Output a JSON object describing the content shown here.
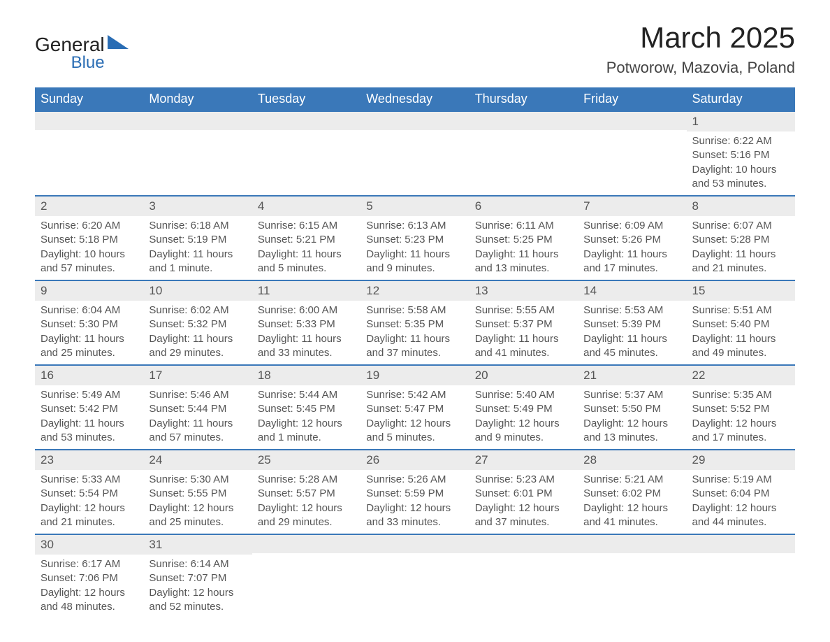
{
  "logo": {
    "main": "General",
    "sub": "Blue"
  },
  "title": "March 2025",
  "location": "Potworow, Mazovia, Poland",
  "colors": {
    "header_bg": "#3a78b9",
    "header_text": "#ffffff",
    "daynum_bg": "#ececec",
    "border": "#3a78b9",
    "text": "#555555",
    "logo_blue": "#2a6db4"
  },
  "weekdays": [
    "Sunday",
    "Monday",
    "Tuesday",
    "Wednesday",
    "Thursday",
    "Friday",
    "Saturday"
  ],
  "weeks": [
    [
      {
        "day": "",
        "sunrise": "",
        "sunset": "",
        "daylight": ""
      },
      {
        "day": "",
        "sunrise": "",
        "sunset": "",
        "daylight": ""
      },
      {
        "day": "",
        "sunrise": "",
        "sunset": "",
        "daylight": ""
      },
      {
        "day": "",
        "sunrise": "",
        "sunset": "",
        "daylight": ""
      },
      {
        "day": "",
        "sunrise": "",
        "sunset": "",
        "daylight": ""
      },
      {
        "day": "",
        "sunrise": "",
        "sunset": "",
        "daylight": ""
      },
      {
        "day": "1",
        "sunrise": "Sunrise: 6:22 AM",
        "sunset": "Sunset: 5:16 PM",
        "daylight": "Daylight: 10 hours and 53 minutes."
      }
    ],
    [
      {
        "day": "2",
        "sunrise": "Sunrise: 6:20 AM",
        "sunset": "Sunset: 5:18 PM",
        "daylight": "Daylight: 10 hours and 57 minutes."
      },
      {
        "day": "3",
        "sunrise": "Sunrise: 6:18 AM",
        "sunset": "Sunset: 5:19 PM",
        "daylight": "Daylight: 11 hours and 1 minute."
      },
      {
        "day": "4",
        "sunrise": "Sunrise: 6:15 AM",
        "sunset": "Sunset: 5:21 PM",
        "daylight": "Daylight: 11 hours and 5 minutes."
      },
      {
        "day": "5",
        "sunrise": "Sunrise: 6:13 AM",
        "sunset": "Sunset: 5:23 PM",
        "daylight": "Daylight: 11 hours and 9 minutes."
      },
      {
        "day": "6",
        "sunrise": "Sunrise: 6:11 AM",
        "sunset": "Sunset: 5:25 PM",
        "daylight": "Daylight: 11 hours and 13 minutes."
      },
      {
        "day": "7",
        "sunrise": "Sunrise: 6:09 AM",
        "sunset": "Sunset: 5:26 PM",
        "daylight": "Daylight: 11 hours and 17 minutes."
      },
      {
        "day": "8",
        "sunrise": "Sunrise: 6:07 AM",
        "sunset": "Sunset: 5:28 PM",
        "daylight": "Daylight: 11 hours and 21 minutes."
      }
    ],
    [
      {
        "day": "9",
        "sunrise": "Sunrise: 6:04 AM",
        "sunset": "Sunset: 5:30 PM",
        "daylight": "Daylight: 11 hours and 25 minutes."
      },
      {
        "day": "10",
        "sunrise": "Sunrise: 6:02 AM",
        "sunset": "Sunset: 5:32 PM",
        "daylight": "Daylight: 11 hours and 29 minutes."
      },
      {
        "day": "11",
        "sunrise": "Sunrise: 6:00 AM",
        "sunset": "Sunset: 5:33 PM",
        "daylight": "Daylight: 11 hours and 33 minutes."
      },
      {
        "day": "12",
        "sunrise": "Sunrise: 5:58 AM",
        "sunset": "Sunset: 5:35 PM",
        "daylight": "Daylight: 11 hours and 37 minutes."
      },
      {
        "day": "13",
        "sunrise": "Sunrise: 5:55 AM",
        "sunset": "Sunset: 5:37 PM",
        "daylight": "Daylight: 11 hours and 41 minutes."
      },
      {
        "day": "14",
        "sunrise": "Sunrise: 5:53 AM",
        "sunset": "Sunset: 5:39 PM",
        "daylight": "Daylight: 11 hours and 45 minutes."
      },
      {
        "day": "15",
        "sunrise": "Sunrise: 5:51 AM",
        "sunset": "Sunset: 5:40 PM",
        "daylight": "Daylight: 11 hours and 49 minutes."
      }
    ],
    [
      {
        "day": "16",
        "sunrise": "Sunrise: 5:49 AM",
        "sunset": "Sunset: 5:42 PM",
        "daylight": "Daylight: 11 hours and 53 minutes."
      },
      {
        "day": "17",
        "sunrise": "Sunrise: 5:46 AM",
        "sunset": "Sunset: 5:44 PM",
        "daylight": "Daylight: 11 hours and 57 minutes."
      },
      {
        "day": "18",
        "sunrise": "Sunrise: 5:44 AM",
        "sunset": "Sunset: 5:45 PM",
        "daylight": "Daylight: 12 hours and 1 minute."
      },
      {
        "day": "19",
        "sunrise": "Sunrise: 5:42 AM",
        "sunset": "Sunset: 5:47 PM",
        "daylight": "Daylight: 12 hours and 5 minutes."
      },
      {
        "day": "20",
        "sunrise": "Sunrise: 5:40 AM",
        "sunset": "Sunset: 5:49 PM",
        "daylight": "Daylight: 12 hours and 9 minutes."
      },
      {
        "day": "21",
        "sunrise": "Sunrise: 5:37 AM",
        "sunset": "Sunset: 5:50 PM",
        "daylight": "Daylight: 12 hours and 13 minutes."
      },
      {
        "day": "22",
        "sunrise": "Sunrise: 5:35 AM",
        "sunset": "Sunset: 5:52 PM",
        "daylight": "Daylight: 12 hours and 17 minutes."
      }
    ],
    [
      {
        "day": "23",
        "sunrise": "Sunrise: 5:33 AM",
        "sunset": "Sunset: 5:54 PM",
        "daylight": "Daylight: 12 hours and 21 minutes."
      },
      {
        "day": "24",
        "sunrise": "Sunrise: 5:30 AM",
        "sunset": "Sunset: 5:55 PM",
        "daylight": "Daylight: 12 hours and 25 minutes."
      },
      {
        "day": "25",
        "sunrise": "Sunrise: 5:28 AM",
        "sunset": "Sunset: 5:57 PM",
        "daylight": "Daylight: 12 hours and 29 minutes."
      },
      {
        "day": "26",
        "sunrise": "Sunrise: 5:26 AM",
        "sunset": "Sunset: 5:59 PM",
        "daylight": "Daylight: 12 hours and 33 minutes."
      },
      {
        "day": "27",
        "sunrise": "Sunrise: 5:23 AM",
        "sunset": "Sunset: 6:01 PM",
        "daylight": "Daylight: 12 hours and 37 minutes."
      },
      {
        "day": "28",
        "sunrise": "Sunrise: 5:21 AM",
        "sunset": "Sunset: 6:02 PM",
        "daylight": "Daylight: 12 hours and 41 minutes."
      },
      {
        "day": "29",
        "sunrise": "Sunrise: 5:19 AM",
        "sunset": "Sunset: 6:04 PM",
        "daylight": "Daylight: 12 hours and 44 minutes."
      }
    ],
    [
      {
        "day": "30",
        "sunrise": "Sunrise: 6:17 AM",
        "sunset": "Sunset: 7:06 PM",
        "daylight": "Daylight: 12 hours and 48 minutes."
      },
      {
        "day": "31",
        "sunrise": "Sunrise: 6:14 AM",
        "sunset": "Sunset: 7:07 PM",
        "daylight": "Daylight: 12 hours and 52 minutes."
      },
      {
        "day": "",
        "sunrise": "",
        "sunset": "",
        "daylight": ""
      },
      {
        "day": "",
        "sunrise": "",
        "sunset": "",
        "daylight": ""
      },
      {
        "day": "",
        "sunrise": "",
        "sunset": "",
        "daylight": ""
      },
      {
        "day": "",
        "sunrise": "",
        "sunset": "",
        "daylight": ""
      },
      {
        "day": "",
        "sunrise": "",
        "sunset": "",
        "daylight": ""
      }
    ]
  ]
}
